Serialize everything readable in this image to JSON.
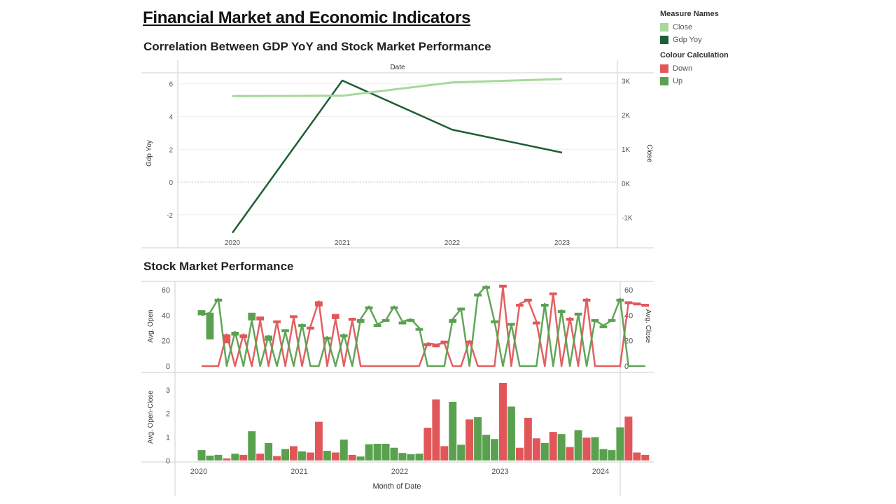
{
  "dashboard": {
    "title": "Financial Market and Economic Indicators",
    "correlation_title": "Correlation Between GDP YoY and Stock Market Performance",
    "stock_title": "Stock Market Performance"
  },
  "legends": {
    "measure_names": {
      "title": "Measure Names",
      "items": [
        {
          "label": "Close",
          "color": "#a6d99a"
        },
        {
          "label": "Gdp Yoy",
          "color": "#1e5e34"
        }
      ]
    },
    "colour_calculation": {
      "title": "Colour Calculation",
      "items": [
        {
          "label": "Down",
          "color": "#e15759"
        },
        {
          "label": "Up",
          "color": "#59a14f"
        }
      ]
    }
  },
  "chart_data": [
    {
      "type": "line",
      "title": "Correlation Between GDP YoY and Stock Market Performance",
      "xlabel": "Date",
      "ylabel": "Gdp Yoy",
      "y2label": "Close",
      "categories": [
        "2020",
        "2021",
        "2022",
        "2023"
      ],
      "yticks": [
        "6",
        "4",
        "2",
        "0",
        "-2"
      ],
      "y2ticks": [
        "3K",
        "2K",
        "1K",
        "0K",
        "-1K"
      ],
      "ylim": [
        -3.2,
        6.5
      ],
      "y2lim": [
        -1500,
        3150
      ],
      "series": [
        {
          "name": "Gdp Yoy",
          "color": "#1e5e34",
          "axis": "left",
          "values": [
            -3.1,
            6.2,
            3.2,
            1.8
          ]
        },
        {
          "name": "Close",
          "color": "#a6d99a",
          "axis": "right",
          "values": [
            2550,
            2560,
            2950,
            3050
          ]
        }
      ]
    },
    {
      "type": "candlestick",
      "title": "Stock Market Performance",
      "xlabel": "Month of Date",
      "ylabel": "Avg. Open",
      "y2label": "Avg. Close",
      "ylabel_lower": "Avg. Open-Close",
      "x_ticks": [
        "2020",
        "2021",
        "2022",
        "2023",
        "2024"
      ],
      "top_yticks": [
        "60",
        "40",
        "20",
        "0"
      ],
      "top_y2ticks": [
        "60",
        "40",
        "20",
        "0"
      ],
      "bottom_yticks": [
        "3",
        "2",
        "1",
        "0"
      ],
      "ylim": [
        0,
        65
      ],
      "bottom_ylim": [
        0,
        3.5
      ],
      "x_start": "2020-01",
      "dir": [
        "U",
        "U",
        "U",
        "D",
        "U",
        "D",
        "U",
        "D",
        "U",
        "D",
        "U",
        "D",
        "U",
        "D",
        "D",
        "U",
        "D",
        "U",
        "D",
        "U",
        "U",
        "U",
        "U",
        "U",
        "U",
        "U",
        "U",
        "D",
        "D",
        "D",
        "U",
        "U",
        "D",
        "U",
        "U",
        "U",
        "D",
        "U",
        "D",
        "D",
        "D",
        "U",
        "D",
        "U",
        "D",
        "U",
        "D",
        "U",
        "U",
        "U",
        "U",
        "D",
        "D",
        "D"
      ],
      "open": [
        44,
        21,
        52,
        18,
        24,
        22,
        42,
        39,
        20,
        36,
        29,
        40,
        31,
        31,
        47,
        22,
        41,
        24,
        38,
        34,
        46,
        31,
        37,
        45,
        33,
        36,
        29,
        18,
        17,
        20,
        34,
        46,
        19,
        57,
        61,
        36,
        64,
        34,
        47,
        53,
        34,
        48,
        58,
        43,
        37,
        42,
        53,
        37,
        31,
        37,
        53,
        51,
        50,
        49
      ],
      "close": [
        40,
        42,
        53,
        25,
        27,
        25,
        36,
        36,
        24,
        35,
        27,
        38,
        33,
        31,
        51,
        23,
        37,
        25,
        36,
        37,
        47,
        33,
        36,
        47,
        35,
        37,
        30,
        18,
        17,
        18,
        37,
        45,
        20,
        56,
        63,
        35,
        62,
        33,
        49,
        52,
        35,
        49,
        57,
        44,
        38,
        41,
        53,
        36,
        32,
        36,
        53,
        50,
        49,
        48
      ],
      "oc_diff": [
        0.45,
        0.22,
        0.25,
        0.1,
        0.3,
        0.25,
        1.25,
        0.3,
        0.75,
        0.2,
        0.5,
        0.62,
        0.4,
        0.35,
        1.65,
        0.42,
        0.35,
        0.9,
        0.25,
        0.18,
        0.7,
        0.72,
        0.72,
        0.55,
        0.33,
        0.28,
        0.3,
        1.4,
        2.6,
        0.62,
        2.5,
        0.68,
        1.75,
        1.85,
        1.1,
        0.92,
        3.3,
        2.3,
        0.55,
        1.82,
        0.95,
        0.75,
        1.22,
        1.13,
        0.58,
        1.3,
        0.98,
        1.0,
        0.5,
        0.45,
        1.42,
        1.87,
        0.35,
        0.25
      ]
    }
  ]
}
